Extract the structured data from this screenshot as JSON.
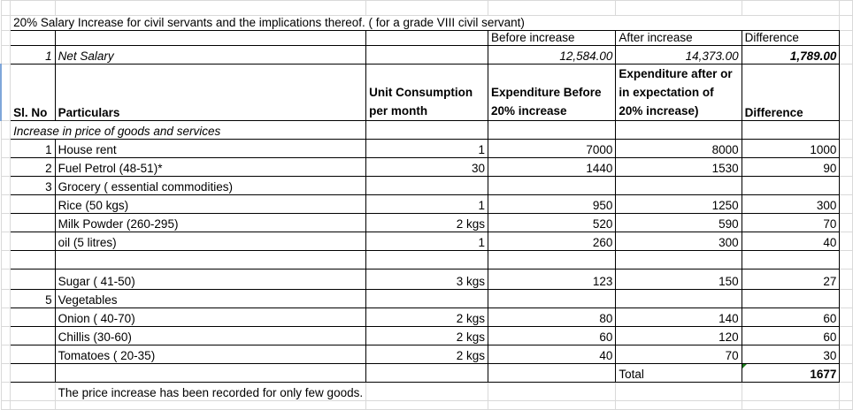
{
  "title": "20% Salary Increase for civil servants and the implications thereof. ( for a grade VIII civil servant)",
  "salary_header": {
    "before": "Before increase",
    "after": "After increase",
    "difference": "Difference"
  },
  "net_salary": {
    "sl": "1",
    "label": "Net Salary",
    "before": "12,584.00",
    "after": "14,373.00",
    "difference": "1,789.00"
  },
  "columns": {
    "sl": "Sl. No",
    "particulars": "Particulars",
    "unit": "Unit Consumption per month",
    "before": "Expenditure Before 20% increase",
    "after": "Expenditure after or in expectation of  20% increase)",
    "difference": "Difference"
  },
  "section_label": "Increase in price of goods and services",
  "rows": [
    {
      "sl": "1",
      "particulars": "House rent",
      "unit": "1",
      "before": "7000",
      "after": "8000",
      "difference": "1000"
    },
    {
      "sl": "2",
      "particulars": "Fuel Petrol (48-51)*",
      "unit": "30",
      "before": "1440",
      "after": "1530",
      "difference": "90"
    },
    {
      "sl": "3",
      "particulars": "Grocery ( essential commodities)",
      "unit": "",
      "before": "",
      "after": "",
      "difference": ""
    },
    {
      "sl": "",
      "particulars": "Rice (50 kgs)",
      "unit": "1",
      "before": "950",
      "after": "1250",
      "difference": "300"
    },
    {
      "sl": "",
      "particulars": "Milk Powder (260-295)",
      "unit": "2 kgs",
      "before": "520",
      "after": "590",
      "difference": "70"
    },
    {
      "sl": "",
      "particulars": "oil (5 litres)",
      "unit": "1",
      "before": "260",
      "after": "300",
      "difference": "40"
    },
    {
      "sl": "",
      "particulars": "",
      "unit": "",
      "before": "",
      "after": "",
      "difference": ""
    },
    {
      "sl": "",
      "particulars": "Sugar ( 41-50)",
      "unit": "3 kgs",
      "before": "123",
      "after": "150",
      "difference": "27"
    },
    {
      "sl": "5",
      "particulars": "Vegetables",
      "unit": "",
      "before": "",
      "after": "",
      "difference": ""
    },
    {
      "sl": "",
      "particulars": "Onion ( 40-70)",
      "unit": "2 kgs",
      "before": "80",
      "after": "140",
      "difference": "60"
    },
    {
      "sl": "",
      "particulars": "Chillis (30-60)",
      "unit": "2 kgs",
      "before": "60",
      "after": "120",
      "difference": "60"
    },
    {
      "sl": "",
      "particulars": "Tomatoes ( 20-35)",
      "unit": "2 kgs",
      "before": "40",
      "after": "70",
      "difference": "30"
    }
  ],
  "total": {
    "label": "Total",
    "value": "1677"
  },
  "note": "The price increase has been  recorded for only few goods."
}
